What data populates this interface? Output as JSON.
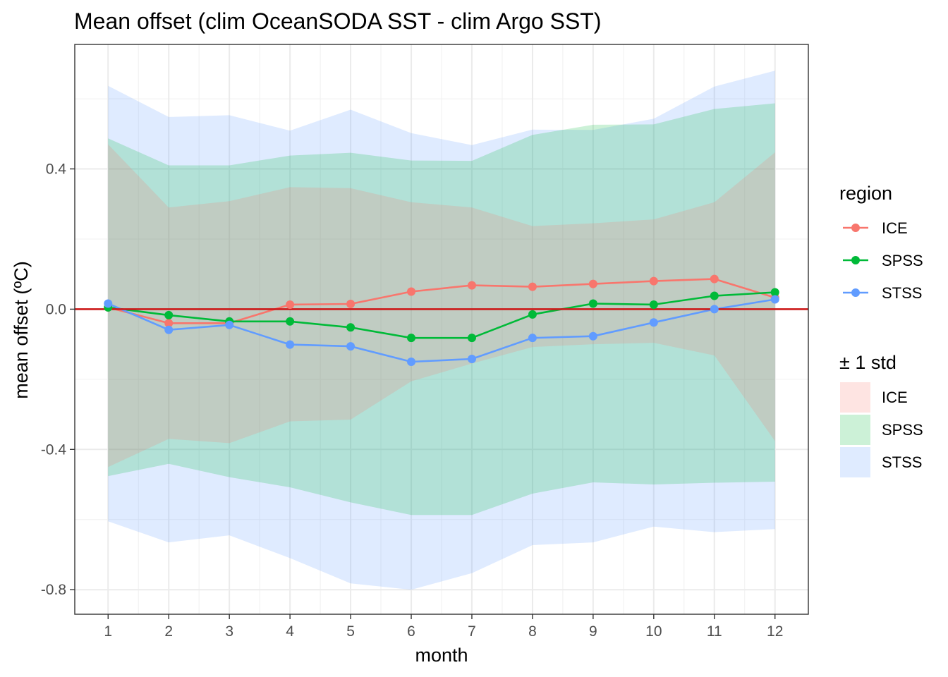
{
  "chart_data": {
    "type": "line",
    "title": "Mean offset (clim OceanSODA SST - clim Argo SST)",
    "xlabel": "month",
    "ylabel": "mean offset (ºC)",
    "x": [
      1,
      2,
      3,
      4,
      5,
      6,
      7,
      8,
      9,
      10,
      11,
      12
    ],
    "xlim": [
      0.45,
      12.55
    ],
    "ylim": [
      -0.87,
      0.755
    ],
    "yticks": [
      -0.8,
      -0.4,
      0.0,
      0.4
    ],
    "ytick_labels": [
      "-0.8",
      "-0.4",
      "0.0",
      "0.4"
    ],
    "xtick_labels": [
      "1",
      "2",
      "3",
      "4",
      "5",
      "6",
      "7",
      "8",
      "9",
      "10",
      "11",
      "12"
    ],
    "reference_line": {
      "y": 0.0,
      "color": "#cc1a1a"
    },
    "grid": true,
    "series": [
      {
        "name": "ICE",
        "color": "#f8766d",
        "fill": "#f8766d",
        "values": [
          0.005,
          -0.04,
          -0.04,
          0.013,
          0.015,
          0.05,
          0.068,
          0.064,
          0.072,
          0.08,
          0.086,
          0.033
        ],
        "upper": [
          0.47,
          0.29,
          0.308,
          0.348,
          0.345,
          0.305,
          0.29,
          0.237,
          0.245,
          0.256,
          0.305,
          0.447
        ],
        "lower": [
          -0.45,
          -0.37,
          -0.382,
          -0.32,
          -0.315,
          -0.206,
          -0.155,
          -0.108,
          -0.1,
          -0.096,
          -0.132,
          -0.376
        ]
      },
      {
        "name": "SPSS",
        "color": "#00ba38",
        "fill": "#00ba38",
        "values": [
          0.005,
          -0.017,
          -0.035,
          -0.035,
          -0.052,
          -0.082,
          -0.082,
          -0.015,
          0.016,
          0.013,
          0.038,
          0.048
        ],
        "upper": [
          0.487,
          0.41,
          0.41,
          0.438,
          0.446,
          0.424,
          0.423,
          0.497,
          0.526,
          0.527,
          0.571,
          0.587
        ],
        "lower": [
          -0.476,
          -0.441,
          -0.479,
          -0.508,
          -0.551,
          -0.587,
          -0.587,
          -0.526,
          -0.494,
          -0.5,
          -0.495,
          -0.492
        ]
      },
      {
        "name": "STSS",
        "color": "#619cff",
        "fill": "#619cff",
        "values": [
          0.016,
          -0.059,
          -0.045,
          -0.101,
          -0.106,
          -0.15,
          -0.142,
          -0.082,
          -0.077,
          -0.038,
          0.0,
          0.028
        ],
        "upper": [
          0.637,
          0.548,
          0.553,
          0.509,
          0.569,
          0.502,
          0.468,
          0.512,
          0.511,
          0.543,
          0.635,
          0.68
        ],
        "lower": [
          -0.605,
          -0.665,
          -0.645,
          -0.71,
          -0.782,
          -0.8,
          -0.753,
          -0.673,
          -0.665,
          -0.62,
          -0.636,
          -0.627
        ]
      }
    ],
    "legend": {
      "placement": "right",
      "line_title": "region",
      "fill_title": "± 1 std",
      "entries": [
        "ICE",
        "SPSS",
        "STSS"
      ]
    }
  }
}
